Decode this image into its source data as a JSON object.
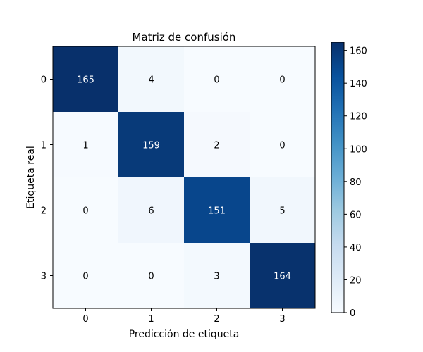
{
  "chart_data": {
    "type": "heatmap",
    "title": "Matriz de confusión",
    "xlabel": "Predicción de etiqueta",
    "ylabel": "Etiqueta real",
    "x_categories": [
      "0",
      "1",
      "2",
      "3"
    ],
    "y_categories": [
      "0",
      "1",
      "2",
      "3"
    ],
    "values": [
      [
        165,
        4,
        0,
        0
      ],
      [
        1,
        159,
        2,
        0
      ],
      [
        0,
        6,
        151,
        5
      ],
      [
        0,
        0,
        3,
        164
      ]
    ],
    "colormap": "Blues",
    "color_range": [
      0,
      165
    ],
    "colorbar_ticks": [
      0,
      20,
      40,
      60,
      80,
      100,
      120,
      140,
      160
    ]
  }
}
